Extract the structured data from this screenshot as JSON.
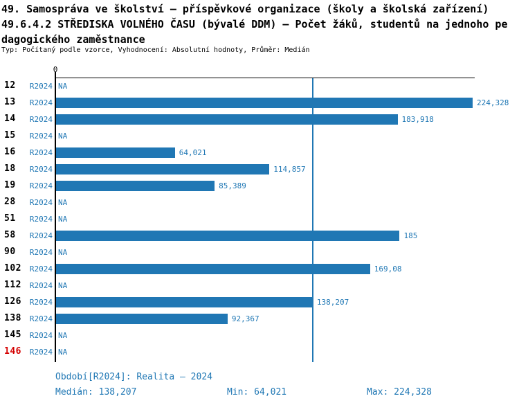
{
  "title": {
    "line1": "49. Samospráva ve školství – příspěvkové organizace (školy a školská zařízení)",
    "line2": "49.6.4.2 STŘEDISKA VOLNÉHO ČASU (bývalé DDM) – Počet žáků, studentů na jednoho pe",
    "line3": "dagogického zaměstnance",
    "meta": "Typ: Počítaný podle vzorce, Vyhodnocení: Absolutní hodnoty, Průměr: Medián"
  },
  "colors": {
    "bar_blue": "#2077b4",
    "text_blue": "#1f77b4",
    "highlight_red": "#d40000",
    "axis_black": "#000000"
  },
  "chart_data": {
    "type": "bar",
    "orientation": "horizontal",
    "title": "Počet žáků, studentů na jednoho pedagogického zaměstnance",
    "x_axis": {
      "min": 0,
      "max": 224.328,
      "zero_tick_label": "0",
      "grid": false
    },
    "median_value": 138.207,
    "na_label": "NA",
    "rows": [
      {
        "id": "12",
        "period": "R2024",
        "value": null,
        "value_label": "NA",
        "highlight": false
      },
      {
        "id": "13",
        "period": "R2024",
        "value": 224.328,
        "value_label": "224,328",
        "highlight": false
      },
      {
        "id": "14",
        "period": "R2024",
        "value": 183.918,
        "value_label": "183,918",
        "highlight": false
      },
      {
        "id": "15",
        "period": "R2024",
        "value": null,
        "value_label": "NA",
        "highlight": false
      },
      {
        "id": "16",
        "period": "R2024",
        "value": 64.021,
        "value_label": "64,021",
        "highlight": false
      },
      {
        "id": "18",
        "period": "R2024",
        "value": 114.857,
        "value_label": "114,857",
        "highlight": false
      },
      {
        "id": "19",
        "period": "R2024",
        "value": 85.389,
        "value_label": "85,389",
        "highlight": false
      },
      {
        "id": "28",
        "period": "R2024",
        "value": null,
        "value_label": "NA",
        "highlight": false
      },
      {
        "id": "51",
        "period": "R2024",
        "value": null,
        "value_label": "NA",
        "highlight": false
      },
      {
        "id": "58",
        "period": "R2024",
        "value": 185,
        "value_label": "185",
        "highlight": false
      },
      {
        "id": "90",
        "period": "R2024",
        "value": null,
        "value_label": "NA",
        "highlight": false
      },
      {
        "id": "102",
        "period": "R2024",
        "value": 169.08,
        "value_label": "169,08",
        "highlight": false
      },
      {
        "id": "112",
        "period": "R2024",
        "value": null,
        "value_label": "NA",
        "highlight": false
      },
      {
        "id": "126",
        "period": "R2024",
        "value": 138.207,
        "value_label": "138,207",
        "highlight": false
      },
      {
        "id": "138",
        "period": "R2024",
        "value": 92.367,
        "value_label": "92,367",
        "highlight": false
      },
      {
        "id": "145",
        "period": "R2024",
        "value": null,
        "value_label": "NA",
        "highlight": false
      },
      {
        "id": "146",
        "period": "R2024",
        "value": null,
        "value_label": "NA",
        "highlight": true
      }
    ]
  },
  "footer": {
    "period_line": "Období[R2024]: Realita – 2024",
    "median": "Medián: 138,207",
    "min": "Min: 64,021",
    "max": "Max: 224,328"
  }
}
